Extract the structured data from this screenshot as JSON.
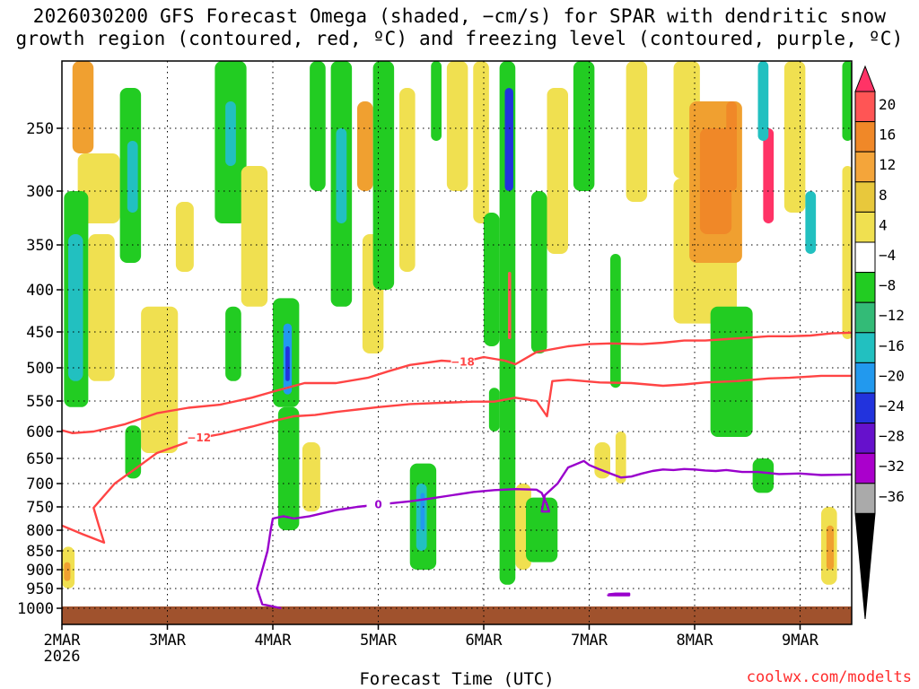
{
  "chart_data": {
    "type": "heatmap",
    "title_line1": "2026030200 GFS Forecast Omega (shaded, −cm/s) for SPAR with dendritic snow",
    "title_line2": "growth region (contoured, red, ºC) and freezing level (contoured, purple, ºC)",
    "xlabel": "Forecast Time (UTC)",
    "ylabel": "",
    "credit": "coolwx.com/modelts",
    "x_ticks": [
      {
        "day": 0,
        "label": "2MAR",
        "sublabel": "2026"
      },
      {
        "day": 1,
        "label": "3MAR",
        "sublabel": ""
      },
      {
        "day": 2,
        "label": "4MAR",
        "sublabel": ""
      },
      {
        "day": 3,
        "label": "5MAR",
        "sublabel": ""
      },
      {
        "day": 4,
        "label": "6MAR",
        "sublabel": ""
      },
      {
        "day": 5,
        "label": "7MAR",
        "sublabel": ""
      },
      {
        "day": 6,
        "label": "8MAR",
        "sublabel": ""
      },
      {
        "day": 7,
        "label": "9MAR",
        "sublabel": ""
      }
    ],
    "xlim_days": [
      0,
      7.5
    ],
    "y_levels": [
      250,
      300,
      350,
      400,
      450,
      500,
      550,
      600,
      650,
      700,
      750,
      800,
      850,
      900,
      950,
      1000
    ],
    "y_labels": [
      "250",
      "300",
      "350",
      "400",
      "450",
      "500",
      "550",
      "600",
      "650",
      "700",
      "750",
      "800",
      "850",
      "900",
      "950",
      "1000"
    ],
    "ylim_hpa": [
      200,
      1010
    ],
    "ground_level_hpa": 1000,
    "colorbar": {
      "labels": [
        "20",
        "16",
        "12",
        "8",
        "4",
        "−4",
        "−8",
        "−12",
        "−16",
        "−20",
        "−24",
        "−28",
        "−32",
        "−36"
      ],
      "colors": [
        "#ff3366",
        "#ff5555",
        "#f08828",
        "#f4a53a",
        "#e8c83c",
        "#f0e050",
        "#ffffff",
        "#22cc22",
        "#33bb77",
        "#22c0c0",
        "#2299ee",
        "#2233dd",
        "#6611cc",
        "#aa00cc",
        "#aaaaaa",
        "#000000"
      ]
    },
    "contours": [
      {
        "name": "dgz-top",
        "value": -18,
        "label": "−18",
        "color": "#ff4444",
        "points": [
          [
            0,
            598
          ],
          [
            0.1,
            603
          ],
          [
            0.3,
            600
          ],
          [
            0.6,
            588
          ],
          [
            0.9,
            570
          ],
          [
            1.2,
            561
          ],
          [
            1.5,
            556
          ],
          [
            1.8,
            545
          ],
          [
            2.0,
            536
          ],
          [
            2.3,
            523
          ],
          [
            2.6,
            523
          ],
          [
            2.9,
            515
          ],
          [
            3.1,
            505
          ],
          [
            3.3,
            496
          ],
          [
            3.6,
            490
          ],
          [
            3.8,
            492
          ],
          [
            4.0,
            485
          ],
          [
            4.2,
            490
          ],
          [
            4.3,
            495
          ],
          [
            4.5,
            478
          ],
          [
            4.8,
            470
          ],
          [
            5.0,
            467
          ],
          [
            5.2,
            466
          ],
          [
            5.5,
            467
          ],
          [
            5.7,
            465
          ],
          [
            5.9,
            462
          ],
          [
            6.1,
            462
          ],
          [
            6.3,
            460
          ],
          [
            6.5,
            458
          ],
          [
            6.7,
            456
          ],
          [
            6.9,
            456
          ],
          [
            7.1,
            455
          ],
          [
            7.3,
            452
          ],
          [
            7.5,
            451
          ]
        ],
        "label_day": 3.75
      },
      {
        "name": "dgz-bottom",
        "value": -12,
        "label": "−12",
        "color": "#ff4444",
        "points": [
          [
            0,
            790
          ],
          [
            0.2,
            810
          ],
          [
            0.4,
            830
          ],
          [
            0.35,
            790
          ],
          [
            0.3,
            752
          ],
          [
            0.5,
            700
          ],
          [
            0.7,
            670
          ],
          [
            0.9,
            640
          ],
          [
            1.1,
            626
          ],
          [
            1.3,
            612
          ],
          [
            1.5,
            605
          ],
          [
            1.8,
            592
          ],
          [
            2.0,
            583
          ],
          [
            2.2,
            575
          ],
          [
            2.4,
            573
          ],
          [
            2.6,
            568
          ],
          [
            2.8,
            564
          ],
          [
            3.0,
            560
          ],
          [
            3.3,
            555
          ],
          [
            3.6,
            553
          ],
          [
            3.9,
            551
          ],
          [
            4.1,
            551
          ],
          [
            4.3,
            545
          ],
          [
            4.5,
            550
          ],
          [
            4.6,
            575
          ],
          [
            4.65,
            520
          ],
          [
            4.8,
            518
          ],
          [
            5.1,
            522
          ],
          [
            5.4,
            523
          ],
          [
            5.7,
            527
          ],
          [
            5.9,
            525
          ],
          [
            6.1,
            522
          ],
          [
            6.4,
            520
          ],
          [
            6.7,
            516
          ],
          [
            6.9,
            515
          ],
          [
            7.2,
            512
          ],
          [
            7.5,
            512
          ]
        ],
        "label_day": 1.4
      },
      {
        "name": "freezing-level",
        "value": 0,
        "label": "0",
        "color": "#9900cc",
        "points": [
          [
            2.08,
            1000
          ],
          [
            1.9,
            990
          ],
          [
            1.85,
            950
          ],
          [
            1.9,
            900
          ],
          [
            1.95,
            850
          ],
          [
            1.98,
            800
          ],
          [
            2.0,
            775
          ],
          [
            2.1,
            770
          ],
          [
            2.2,
            775
          ],
          [
            2.35,
            770
          ],
          [
            2.6,
            757
          ],
          [
            2.8,
            750
          ],
          [
            3.0,
            745
          ],
          [
            3.3,
            738
          ],
          [
            3.5,
            732
          ],
          [
            3.7,
            725
          ],
          [
            3.9,
            718
          ],
          [
            4.1,
            714
          ],
          [
            4.3,
            712
          ],
          [
            4.5,
            713
          ],
          [
            4.55,
            720
          ],
          [
            4.6,
            745
          ],
          [
            4.62,
            760
          ],
          [
            4.55,
            760
          ],
          [
            4.58,
            725
          ],
          [
            4.7,
            700
          ],
          [
            4.8,
            668
          ],
          [
            4.95,
            655
          ],
          [
            5.0,
            663
          ],
          [
            5.1,
            672
          ],
          [
            5.2,
            680
          ],
          [
            5.3,
            688
          ],
          [
            5.4,
            686
          ],
          [
            5.5,
            680
          ],
          [
            5.6,
            675
          ],
          [
            5.7,
            672
          ],
          [
            5.8,
            673
          ],
          [
            5.9,
            671
          ],
          [
            6.0,
            672
          ],
          [
            6.1,
            674
          ],
          [
            6.2,
            675
          ],
          [
            6.3,
            673
          ],
          [
            6.45,
            677
          ],
          [
            6.6,
            677
          ],
          [
            6.8,
            681
          ],
          [
            7.0,
            680
          ],
          [
            7.2,
            683
          ],
          [
            7.5,
            682
          ]
        ],
        "label_day": 2.95
      },
      {
        "name": "freezing-blob",
        "value": 0,
        "label": "",
        "color": "#9900cc",
        "points": [
          [
            5.18,
            965
          ],
          [
            5.25,
            963
          ],
          [
            5.38,
            963
          ],
          [
            5.38,
            967
          ],
          [
            5.18,
            967
          ],
          [
            5.18,
            965
          ]
        ],
        "label_day": -1
      }
    ],
    "blobs": [
      {
        "d0": 0.1,
        "d1": 0.3,
        "p0": 200,
        "p1": 270,
        "c": "#f0a030"
      },
      {
        "d0": 0.15,
        "d1": 0.55,
        "p0": 270,
        "p1": 330,
        "c": "#f0e050"
      },
      {
        "d0": 0.02,
        "d1": 0.25,
        "p0": 300,
        "p1": 560,
        "c": "#22cc22"
      },
      {
        "d0": 0.06,
        "d1": 0.2,
        "p0": 340,
        "p1": 520,
        "c": "#22c0c0"
      },
      {
        "d0": 0.25,
        "d1": 0.5,
        "p0": 340,
        "p1": 520,
        "c": "#f0e050"
      },
      {
        "d0": 0.55,
        "d1": 0.75,
        "p0": 220,
        "p1": 370,
        "c": "#22cc22"
      },
      {
        "d0": 0.62,
        "d1": 0.72,
        "p0": 260,
        "p1": 320,
        "c": "#22c0c0"
      },
      {
        "d0": 0.75,
        "d1": 1.1,
        "p0": 420,
        "p1": 640,
        "c": "#f0e050"
      },
      {
        "d0": 0.0,
        "d1": 0.12,
        "p0": 840,
        "p1": 950,
        "c": "#f0e050"
      },
      {
        "d0": 0.02,
        "d1": 0.08,
        "p0": 880,
        "p1": 930,
        "c": "#f0a030"
      },
      {
        "d0": 1.45,
        "d1": 1.75,
        "p0": 200,
        "p1": 330,
        "c": "#22cc22"
      },
      {
        "d0": 1.55,
        "d1": 1.65,
        "p0": 230,
        "p1": 280,
        "c": "#22c0c0"
      },
      {
        "d0": 1.7,
        "d1": 1.95,
        "p0": 280,
        "p1": 420,
        "c": "#f0e050"
      },
      {
        "d0": 1.08,
        "d1": 1.25,
        "p0": 310,
        "p1": 380,
        "c": "#f0e050"
      },
      {
        "d0": 2.0,
        "d1": 2.25,
        "p0": 410,
        "p1": 560,
        "c": "#22cc22"
      },
      {
        "d0": 2.1,
        "d1": 2.18,
        "p0": 440,
        "p1": 540,
        "c": "#2299ee"
      },
      {
        "d0": 2.12,
        "d1": 2.16,
        "p0": 470,
        "p1": 520,
        "c": "#2233dd"
      },
      {
        "d0": 2.05,
        "d1": 2.25,
        "p0": 560,
        "p1": 800,
        "c": "#22cc22"
      },
      {
        "d0": 2.28,
        "d1": 2.45,
        "p0": 620,
        "p1": 760,
        "c": "#f0e050"
      },
      {
        "d0": 2.35,
        "d1": 2.5,
        "p0": 200,
        "p1": 300,
        "c": "#22cc22"
      },
      {
        "d0": 2.55,
        "d1": 2.75,
        "p0": 200,
        "p1": 420,
        "c": "#22cc22"
      },
      {
        "d0": 2.6,
        "d1": 2.7,
        "p0": 250,
        "p1": 330,
        "c": "#22c0c0"
      },
      {
        "d0": 2.8,
        "d1": 2.95,
        "p0": 230,
        "p1": 300,
        "c": "#f0a030"
      },
      {
        "d0": 2.85,
        "d1": 3.05,
        "p0": 340,
        "p1": 480,
        "c": "#f0e050"
      },
      {
        "d0": 2.95,
        "d1": 3.15,
        "p0": 200,
        "p1": 400,
        "c": "#22cc22"
      },
      {
        "d0": 3.2,
        "d1": 3.35,
        "p0": 220,
        "p1": 380,
        "c": "#f0e050"
      },
      {
        "d0": 3.3,
        "d1": 3.55,
        "p0": 660,
        "p1": 900,
        "c": "#22cc22"
      },
      {
        "d0": 3.36,
        "d1": 3.46,
        "p0": 700,
        "p1": 850,
        "c": "#22c0c0"
      },
      {
        "d0": 3.4,
        "d1": 3.44,
        "p0": 720,
        "p1": 800,
        "c": "#2299ee"
      },
      {
        "d0": 3.5,
        "d1": 3.6,
        "p0": 200,
        "p1": 260,
        "c": "#22cc22"
      },
      {
        "d0": 3.65,
        "d1": 3.85,
        "p0": 200,
        "p1": 300,
        "c": "#f0e050"
      },
      {
        "d0": 3.9,
        "d1": 4.05,
        "p0": 200,
        "p1": 330,
        "c": "#f0e050"
      },
      {
        "d0": 4.0,
        "d1": 4.15,
        "p0": 320,
        "p1": 470,
        "c": "#22cc22"
      },
      {
        "d0": 4.15,
        "d1": 4.3,
        "p0": 200,
        "p1": 940,
        "c": "#22cc22"
      },
      {
        "d0": 4.2,
        "d1": 4.28,
        "p0": 220,
        "p1": 300,
        "c": "#2233dd"
      },
      {
        "d0": 4.23,
        "d1": 4.26,
        "p0": 380,
        "p1": 460,
        "c": "#ff5555"
      },
      {
        "d0": 4.05,
        "d1": 4.15,
        "p0": 530,
        "p1": 600,
        "c": "#22cc22"
      },
      {
        "d0": 4.3,
        "d1": 4.45,
        "p0": 700,
        "p1": 900,
        "c": "#f0e050"
      },
      {
        "d0": 4.45,
        "d1": 4.6,
        "p0": 300,
        "p1": 480,
        "c": "#22cc22"
      },
      {
        "d0": 4.6,
        "d1": 4.8,
        "p0": 220,
        "p1": 360,
        "c": "#f0e050"
      },
      {
        "d0": 4.4,
        "d1": 4.7,
        "p0": 730,
        "p1": 880,
        "c": "#22cc22"
      },
      {
        "d0": 4.85,
        "d1": 5.05,
        "p0": 200,
        "p1": 300,
        "c": "#22cc22"
      },
      {
        "d0": 5.2,
        "d1": 5.3,
        "p0": 360,
        "p1": 530,
        "c": "#22cc22"
      },
      {
        "d0": 5.35,
        "d1": 5.55,
        "p0": 200,
        "p1": 310,
        "c": "#f0e050"
      },
      {
        "d0": 5.05,
        "d1": 5.2,
        "p0": 620,
        "p1": 690,
        "c": "#f0e050"
      },
      {
        "d0": 5.8,
        "d1": 6.05,
        "p0": 200,
        "p1": 290,
        "c": "#f0e050"
      },
      {
        "d0": 5.8,
        "d1": 6.4,
        "p0": 290,
        "p1": 440,
        "c": "#f0e050"
      },
      {
        "d0": 5.95,
        "d1": 6.45,
        "p0": 230,
        "p1": 370,
        "c": "#f0a030"
      },
      {
        "d0": 6.05,
        "d1": 6.35,
        "p0": 250,
        "p1": 340,
        "c": "#f08828"
      },
      {
        "d0": 6.3,
        "d1": 6.4,
        "p0": 230,
        "p1": 300,
        "c": "#f08828"
      },
      {
        "d0": 6.65,
        "d1": 6.75,
        "p0": 250,
        "p1": 330,
        "c": "#ff3366"
      },
      {
        "d0": 6.6,
        "d1": 6.7,
        "p0": 200,
        "p1": 260,
        "c": "#22c0c0"
      },
      {
        "d0": 6.15,
        "d1": 6.55,
        "p0": 420,
        "p1": 610,
        "c": "#22cc22"
      },
      {
        "d0": 6.55,
        "d1": 6.75,
        "p0": 650,
        "p1": 720,
        "c": "#22cc22"
      },
      {
        "d0": 6.85,
        "d1": 7.05,
        "p0": 200,
        "p1": 320,
        "c": "#f0e050"
      },
      {
        "d0": 7.05,
        "d1": 7.15,
        "p0": 300,
        "p1": 360,
        "c": "#22c0c0"
      },
      {
        "d0": 7.2,
        "d1": 7.35,
        "p0": 750,
        "p1": 940,
        "c": "#f0e050"
      },
      {
        "d0": 7.25,
        "d1": 7.32,
        "p0": 790,
        "p1": 900,
        "c": "#f0a030"
      },
      {
        "d0": 7.4,
        "d1": 7.5,
        "p0": 280,
        "p1": 460,
        "c": "#f0e050"
      },
      {
        "d0": 7.4,
        "d1": 7.5,
        "p0": 200,
        "p1": 260,
        "c": "#22cc22"
      },
      {
        "d0": 0.6,
        "d1": 0.75,
        "p0": 590,
        "p1": 690,
        "c": "#22cc22"
      },
      {
        "d0": 1.55,
        "d1": 1.7,
        "p0": 420,
        "p1": 520,
        "c": "#22cc22"
      },
      {
        "d0": 5.25,
        "d1": 5.35,
        "p0": 600,
        "p1": 700,
        "c": "#f0e050"
      }
    ]
  }
}
